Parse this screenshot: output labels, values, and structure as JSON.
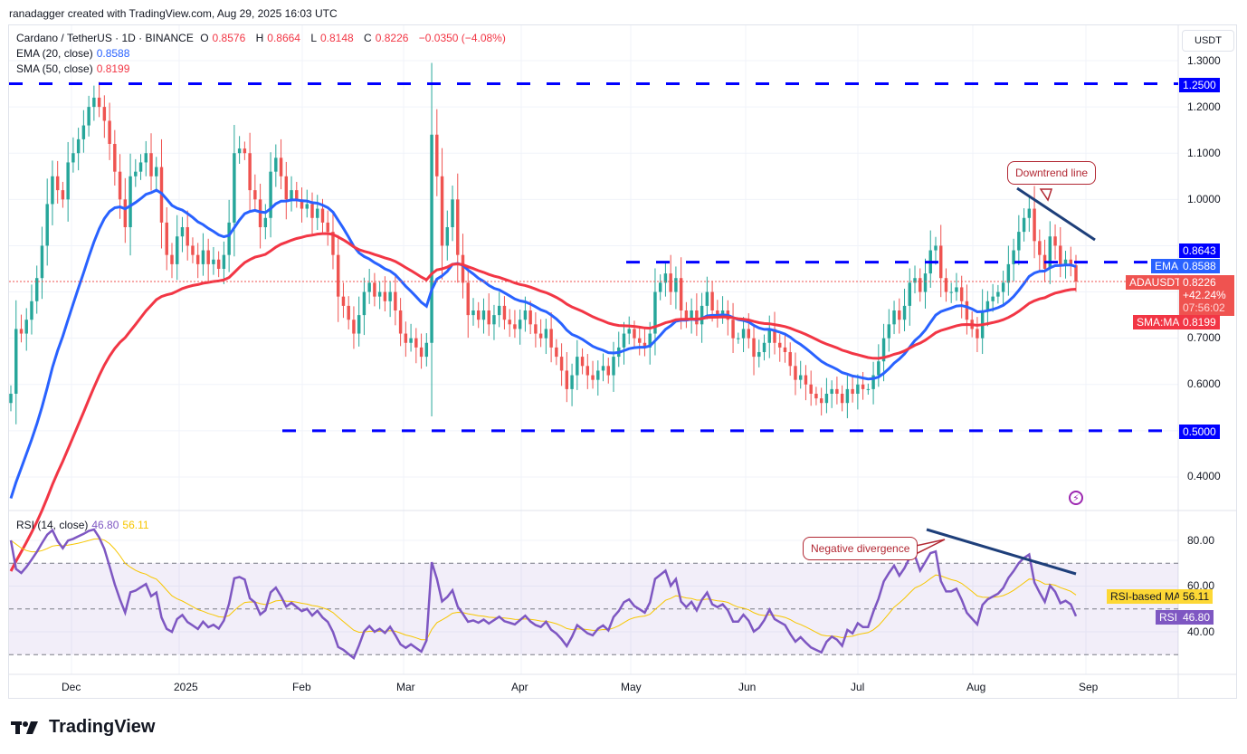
{
  "credit": "ranadagger created with TradingView.com, Aug 29, 2025 16:03 UTC",
  "legend": {
    "symbol": "Cardano / TetherUS · 1D · BINANCE",
    "o_label": "O",
    "o": "0.8576",
    "h_label": "H",
    "h": "0.8664",
    "l_label": "L",
    "l": "0.8148",
    "c_label": "C",
    "c": "0.8226",
    "change": "−0.0350 (−4.08%)",
    "ema_label": "EMA (20, close)",
    "ema_value": "0.8588",
    "sma_label": "SMA (50, close)",
    "sma_value": "0.8199",
    "rsi_label": "RSI (14, close)",
    "rsi_value": "46.80",
    "rsi_ma_value": "56.11"
  },
  "axis": {
    "currency": "USDT",
    "price_ticks": [
      "1.3000",
      "1.2000",
      "1.1000",
      "1.0000",
      "0.7000",
      "0.6000",
      "0.4000"
    ],
    "rsi_ticks": [
      "80.00",
      "60.00",
      "40.00"
    ],
    "time_ticks": [
      "Dec",
      "2025",
      "Feb",
      "Mar",
      "Apr",
      "May",
      "Jun",
      "Jul",
      "Aug",
      "Sep"
    ]
  },
  "tags": {
    "level_high": "1.2500",
    "level_mid": "0.8643",
    "level_low": "0.5000",
    "ema_name": "EMA",
    "ema_value": "0.8588",
    "symbol_name": "ADAUSDT",
    "price": "0.8226",
    "pct": "+42.24%",
    "countdown": "07:56:02",
    "sma_name": "SMA:MA",
    "sma_value": "0.8199",
    "rsi_ma_name": "RSI-based MA",
    "rsi_ma_value": "56.11",
    "rsi_name": "RSI",
    "rsi_value": "46.80"
  },
  "annotations": {
    "downtrend": "Downtrend line",
    "divergence": "Negative divergence"
  },
  "brand": "TradingView",
  "colors": {
    "up": "#26a69a",
    "down": "#ef5350",
    "ema": "#2962ff",
    "sma": "#f23645",
    "level": "#0000ff",
    "rsi": "#7e57c2",
    "rsi_ma": "#f7c600",
    "trend": "#1e3f7a"
  },
  "chart_data": {
    "type": "candlestick",
    "title": "Cardano / TetherUS · 1D · BINANCE",
    "ylabel": "USDT",
    "ylim": [
      0.35,
      1.33
    ],
    "x_range": [
      "2024-11-14",
      "2025-08-29"
    ],
    "horizontal_levels": [
      1.25,
      0.8643,
      0.5
    ],
    "closes": [
      0.58,
      0.72,
      0.71,
      0.74,
      0.78,
      0.83,
      0.9,
      0.99,
      1.05,
      1.02,
      1.0,
      1.08,
      1.1,
      1.13,
      1.16,
      1.2,
      1.22,
      1.2,
      1.17,
      1.12,
      1.06,
      1.0,
      0.94,
      1.05,
      1.06,
      1.08,
      1.1,
      1.05,
      1.07,
      0.95,
      0.88,
      0.86,
      0.92,
      0.94,
      0.9,
      0.88,
      0.86,
      0.89,
      0.86,
      0.87,
      0.85,
      0.88,
      0.95,
      1.1,
      1.11,
      1.1,
      1.02,
      1.0,
      0.94,
      0.96,
      1.06,
      1.09,
      1.05,
      1.0,
      1.02,
      1.0,
      0.98,
      0.99,
      0.96,
      0.98,
      0.95,
      0.93,
      0.88,
      0.79,
      0.77,
      0.74,
      0.71,
      0.75,
      0.8,
      0.82,
      0.79,
      0.8,
      0.78,
      0.8,
      0.76,
      0.71,
      0.69,
      0.7,
      0.68,
      0.66,
      0.69,
      1.14,
      1.05,
      0.9,
      0.94,
      1.0,
      0.88,
      0.82,
      0.75,
      0.76,
      0.74,
      0.76,
      0.73,
      0.75,
      0.77,
      0.74,
      0.73,
      0.72,
      0.74,
      0.76,
      0.73,
      0.71,
      0.7,
      0.72,
      0.68,
      0.66,
      0.63,
      0.59,
      0.62,
      0.66,
      0.64,
      0.62,
      0.61,
      0.63,
      0.64,
      0.62,
      0.66,
      0.68,
      0.71,
      0.72,
      0.7,
      0.69,
      0.68,
      0.71,
      0.8,
      0.82,
      0.84,
      0.8,
      0.83,
      0.76,
      0.74,
      0.76,
      0.73,
      0.77,
      0.8,
      0.76,
      0.75,
      0.76,
      0.74,
      0.7,
      0.7,
      0.72,
      0.7,
      0.66,
      0.67,
      0.69,
      0.72,
      0.69,
      0.68,
      0.67,
      0.64,
      0.61,
      0.62,
      0.6,
      0.58,
      0.57,
      0.56,
      0.58,
      0.59,
      0.58,
      0.56,
      0.59,
      0.58,
      0.6,
      0.59,
      0.59,
      0.62,
      0.65,
      0.7,
      0.73,
      0.76,
      0.74,
      0.77,
      0.82,
      0.83,
      0.8,
      0.84,
      0.89,
      0.9,
      0.83,
      0.8,
      0.8,
      0.81,
      0.78,
      0.74,
      0.72,
      0.7,
      0.76,
      0.78,
      0.79,
      0.8,
      0.82,
      0.86,
      0.89,
      0.93,
      0.96,
      0.98,
      0.91,
      0.88,
      0.85,
      0.92,
      0.9,
      0.86,
      0.87,
      0.8576,
      0.8226
    ],
    "ema20_last": 0.8588,
    "sma50_last": 0.8199,
    "rsi": {
      "ylim": [
        20,
        95
      ],
      "levels": [
        70,
        50,
        30
      ],
      "last": 46.8,
      "ma_last": 56.11
    }
  }
}
